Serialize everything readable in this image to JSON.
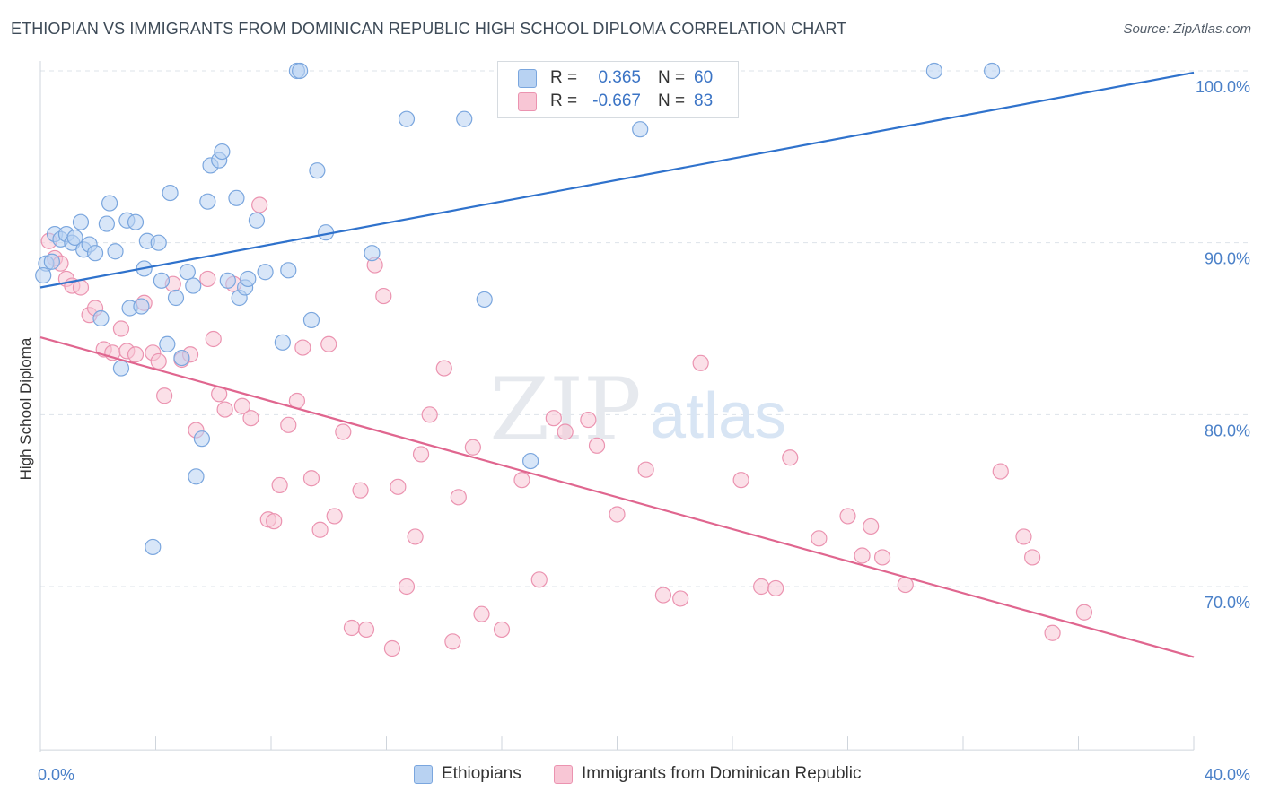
{
  "header": {
    "title": "ETHIOPIAN VS IMMIGRANTS FROM DOMINICAN REPUBLIC HIGH SCHOOL DIPLOMA CORRELATION CHART",
    "source": "Source: ZipAtlas.com"
  },
  "watermark": {
    "zip": "ZIP",
    "atlas": "atlas"
  },
  "legend": {
    "blue": {
      "r_label": "R =",
      "r_value": "0.365",
      "n_label": "N =",
      "n_value": "60"
    },
    "pink": {
      "r_label": "R =",
      "r_value": "-0.667",
      "n_label": "N =",
      "n_value": "83"
    }
  },
  "bottom_legend": {
    "blue": "Ethiopians",
    "pink": "Immigrants from Dominican Republic"
  },
  "colors": {
    "blue_fill": "#b8d2f2",
    "blue_stroke": "#7aa6de",
    "blue_line": "#2f72cc",
    "pink_fill": "#f8c6d5",
    "pink_stroke": "#eb93b0",
    "pink_line": "#e0668f",
    "tick_text": "#4a80c8",
    "grid": "#dde3ea"
  },
  "chart_data": {
    "type": "scatter",
    "title": "ETHIOPIAN VS IMMIGRANTS FROM DOMINICAN REPUBLIC HIGH SCHOOL DIPLOMA CORRELATION CHART",
    "xlabel": "",
    "ylabel": "High School Diploma",
    "xlim": [
      0,
      40
    ],
    "ylim": [
      60.5,
      101.5
    ],
    "x_tick_labels": [
      "0.0%",
      "40.0%"
    ],
    "y_ticks": [
      70,
      80,
      90,
      100
    ],
    "y_tick_labels": [
      "70.0%",
      "80.0%",
      "90.0%",
      "100.0%"
    ],
    "grid": true,
    "legend_position": "top-center",
    "series": [
      {
        "name": "Ethiopians",
        "color": "#7aa6de",
        "trendline": [
          [
            0,
            87.4
          ],
          [
            40,
            99.9
          ]
        ],
        "points": [
          [
            0.2,
            88.8
          ],
          [
            0.4,
            88.9
          ],
          [
            0.5,
            90.5
          ],
          [
            0.7,
            90.2
          ],
          [
            0.9,
            90.5
          ],
          [
            1.1,
            90.0
          ],
          [
            1.2,
            90.3
          ],
          [
            1.4,
            91.2
          ],
          [
            1.5,
            89.6
          ],
          [
            1.7,
            89.9
          ],
          [
            1.9,
            89.4
          ],
          [
            2.1,
            85.6
          ],
          [
            2.3,
            91.1
          ],
          [
            2.4,
            92.3
          ],
          [
            2.6,
            89.5
          ],
          [
            2.8,
            82.7
          ],
          [
            3.0,
            91.3
          ],
          [
            3.1,
            86.2
          ],
          [
            3.3,
            91.2
          ],
          [
            3.5,
            86.3
          ],
          [
            3.6,
            88.5
          ],
          [
            3.7,
            90.1
          ],
          [
            3.9,
            72.3
          ],
          [
            4.1,
            90.0
          ],
          [
            4.2,
            87.8
          ],
          [
            4.4,
            84.1
          ],
          [
            4.5,
            92.9
          ],
          [
            4.7,
            86.8
          ],
          [
            4.9,
            83.3
          ],
          [
            5.1,
            88.3
          ],
          [
            5.3,
            87.5
          ],
          [
            5.4,
            76.4
          ],
          [
            5.6,
            78.6
          ],
          [
            5.8,
            92.4
          ],
          [
            5.9,
            94.5
          ],
          [
            6.2,
            94.8
          ],
          [
            6.3,
            95.3
          ],
          [
            6.5,
            87.8
          ],
          [
            6.8,
            92.6
          ],
          [
            6.9,
            86.8
          ],
          [
            7.1,
            87.4
          ],
          [
            7.2,
            87.9
          ],
          [
            7.5,
            91.3
          ],
          [
            7.8,
            88.3
          ],
          [
            8.4,
            84.2
          ],
          [
            8.6,
            88.4
          ],
          [
            8.9,
            100.0
          ],
          [
            9.0,
            100.0
          ],
          [
            9.4,
            85.5
          ],
          [
            9.6,
            94.2
          ],
          [
            9.9,
            90.6
          ],
          [
            11.5,
            89.4
          ],
          [
            12.7,
            97.2
          ],
          [
            14.7,
            97.2
          ],
          [
            15.4,
            86.7
          ],
          [
            17.0,
            77.3
          ],
          [
            20.8,
            96.6
          ],
          [
            31.0,
            100.0
          ],
          [
            33.0,
            100.0
          ],
          [
            0.1,
            88.1
          ]
        ]
      },
      {
        "name": "Immigrants from Dominican Republic",
        "color": "#eb93b0",
        "trendline": [
          [
            0,
            84.5
          ],
          [
            40,
            65.9
          ]
        ],
        "points": [
          [
            0.3,
            90.1
          ],
          [
            0.5,
            89.1
          ],
          [
            0.7,
            88.8
          ],
          [
            0.9,
            87.9
          ],
          [
            1.1,
            87.5
          ],
          [
            1.4,
            87.4
          ],
          [
            1.7,
            85.8
          ],
          [
            1.9,
            86.2
          ],
          [
            2.2,
            83.8
          ],
          [
            2.5,
            83.6
          ],
          [
            2.8,
            85.0
          ],
          [
            3.0,
            83.7
          ],
          [
            3.3,
            83.5
          ],
          [
            3.6,
            86.5
          ],
          [
            3.9,
            83.6
          ],
          [
            4.1,
            83.1
          ],
          [
            4.3,
            81.1
          ],
          [
            4.6,
            87.6
          ],
          [
            4.9,
            83.2
          ],
          [
            5.2,
            83.5
          ],
          [
            5.4,
            79.1
          ],
          [
            5.8,
            87.9
          ],
          [
            6.0,
            84.4
          ],
          [
            6.2,
            81.2
          ],
          [
            6.4,
            80.3
          ],
          [
            6.7,
            87.6
          ],
          [
            7.0,
            80.5
          ],
          [
            7.3,
            79.8
          ],
          [
            7.6,
            92.2
          ],
          [
            7.9,
            73.9
          ],
          [
            8.1,
            73.8
          ],
          [
            8.3,
            75.9
          ],
          [
            8.6,
            79.4
          ],
          [
            8.9,
            80.8
          ],
          [
            9.1,
            83.9
          ],
          [
            9.4,
            76.3
          ],
          [
            9.7,
            73.3
          ],
          [
            10.0,
            84.1
          ],
          [
            10.2,
            74.1
          ],
          [
            10.5,
            79.0
          ],
          [
            10.8,
            67.6
          ],
          [
            11.1,
            75.6
          ],
          [
            11.3,
            67.5
          ],
          [
            11.6,
            88.7
          ],
          [
            11.9,
            86.9
          ],
          [
            12.2,
            66.4
          ],
          [
            12.4,
            75.8
          ],
          [
            12.7,
            70.0
          ],
          [
            13.0,
            72.9
          ],
          [
            13.2,
            77.7
          ],
          [
            13.5,
            80.0
          ],
          [
            14.0,
            82.7
          ],
          [
            14.3,
            66.8
          ],
          [
            14.5,
            75.2
          ],
          [
            15.0,
            78.1
          ],
          [
            15.3,
            68.4
          ],
          [
            16.0,
            67.5
          ],
          [
            16.7,
            76.2
          ],
          [
            17.3,
            70.4
          ],
          [
            17.8,
            79.8
          ],
          [
            18.2,
            79.0
          ],
          [
            19.0,
            79.7
          ],
          [
            19.3,
            78.2
          ],
          [
            20.0,
            74.2
          ],
          [
            21.0,
            76.8
          ],
          [
            21.6,
            69.5
          ],
          [
            22.2,
            69.3
          ],
          [
            22.9,
            83.0
          ],
          [
            24.3,
            76.2
          ],
          [
            25.0,
            70.0
          ],
          [
            25.5,
            69.9
          ],
          [
            26.0,
            77.5
          ],
          [
            27.0,
            72.8
          ],
          [
            28.0,
            74.1
          ],
          [
            28.5,
            71.8
          ],
          [
            28.8,
            73.5
          ],
          [
            29.2,
            71.7
          ],
          [
            30.0,
            70.1
          ],
          [
            33.3,
            76.7
          ],
          [
            34.1,
            72.9
          ],
          [
            34.4,
            71.7
          ],
          [
            35.1,
            67.3
          ],
          [
            36.2,
            68.5
          ]
        ]
      }
    ]
  }
}
